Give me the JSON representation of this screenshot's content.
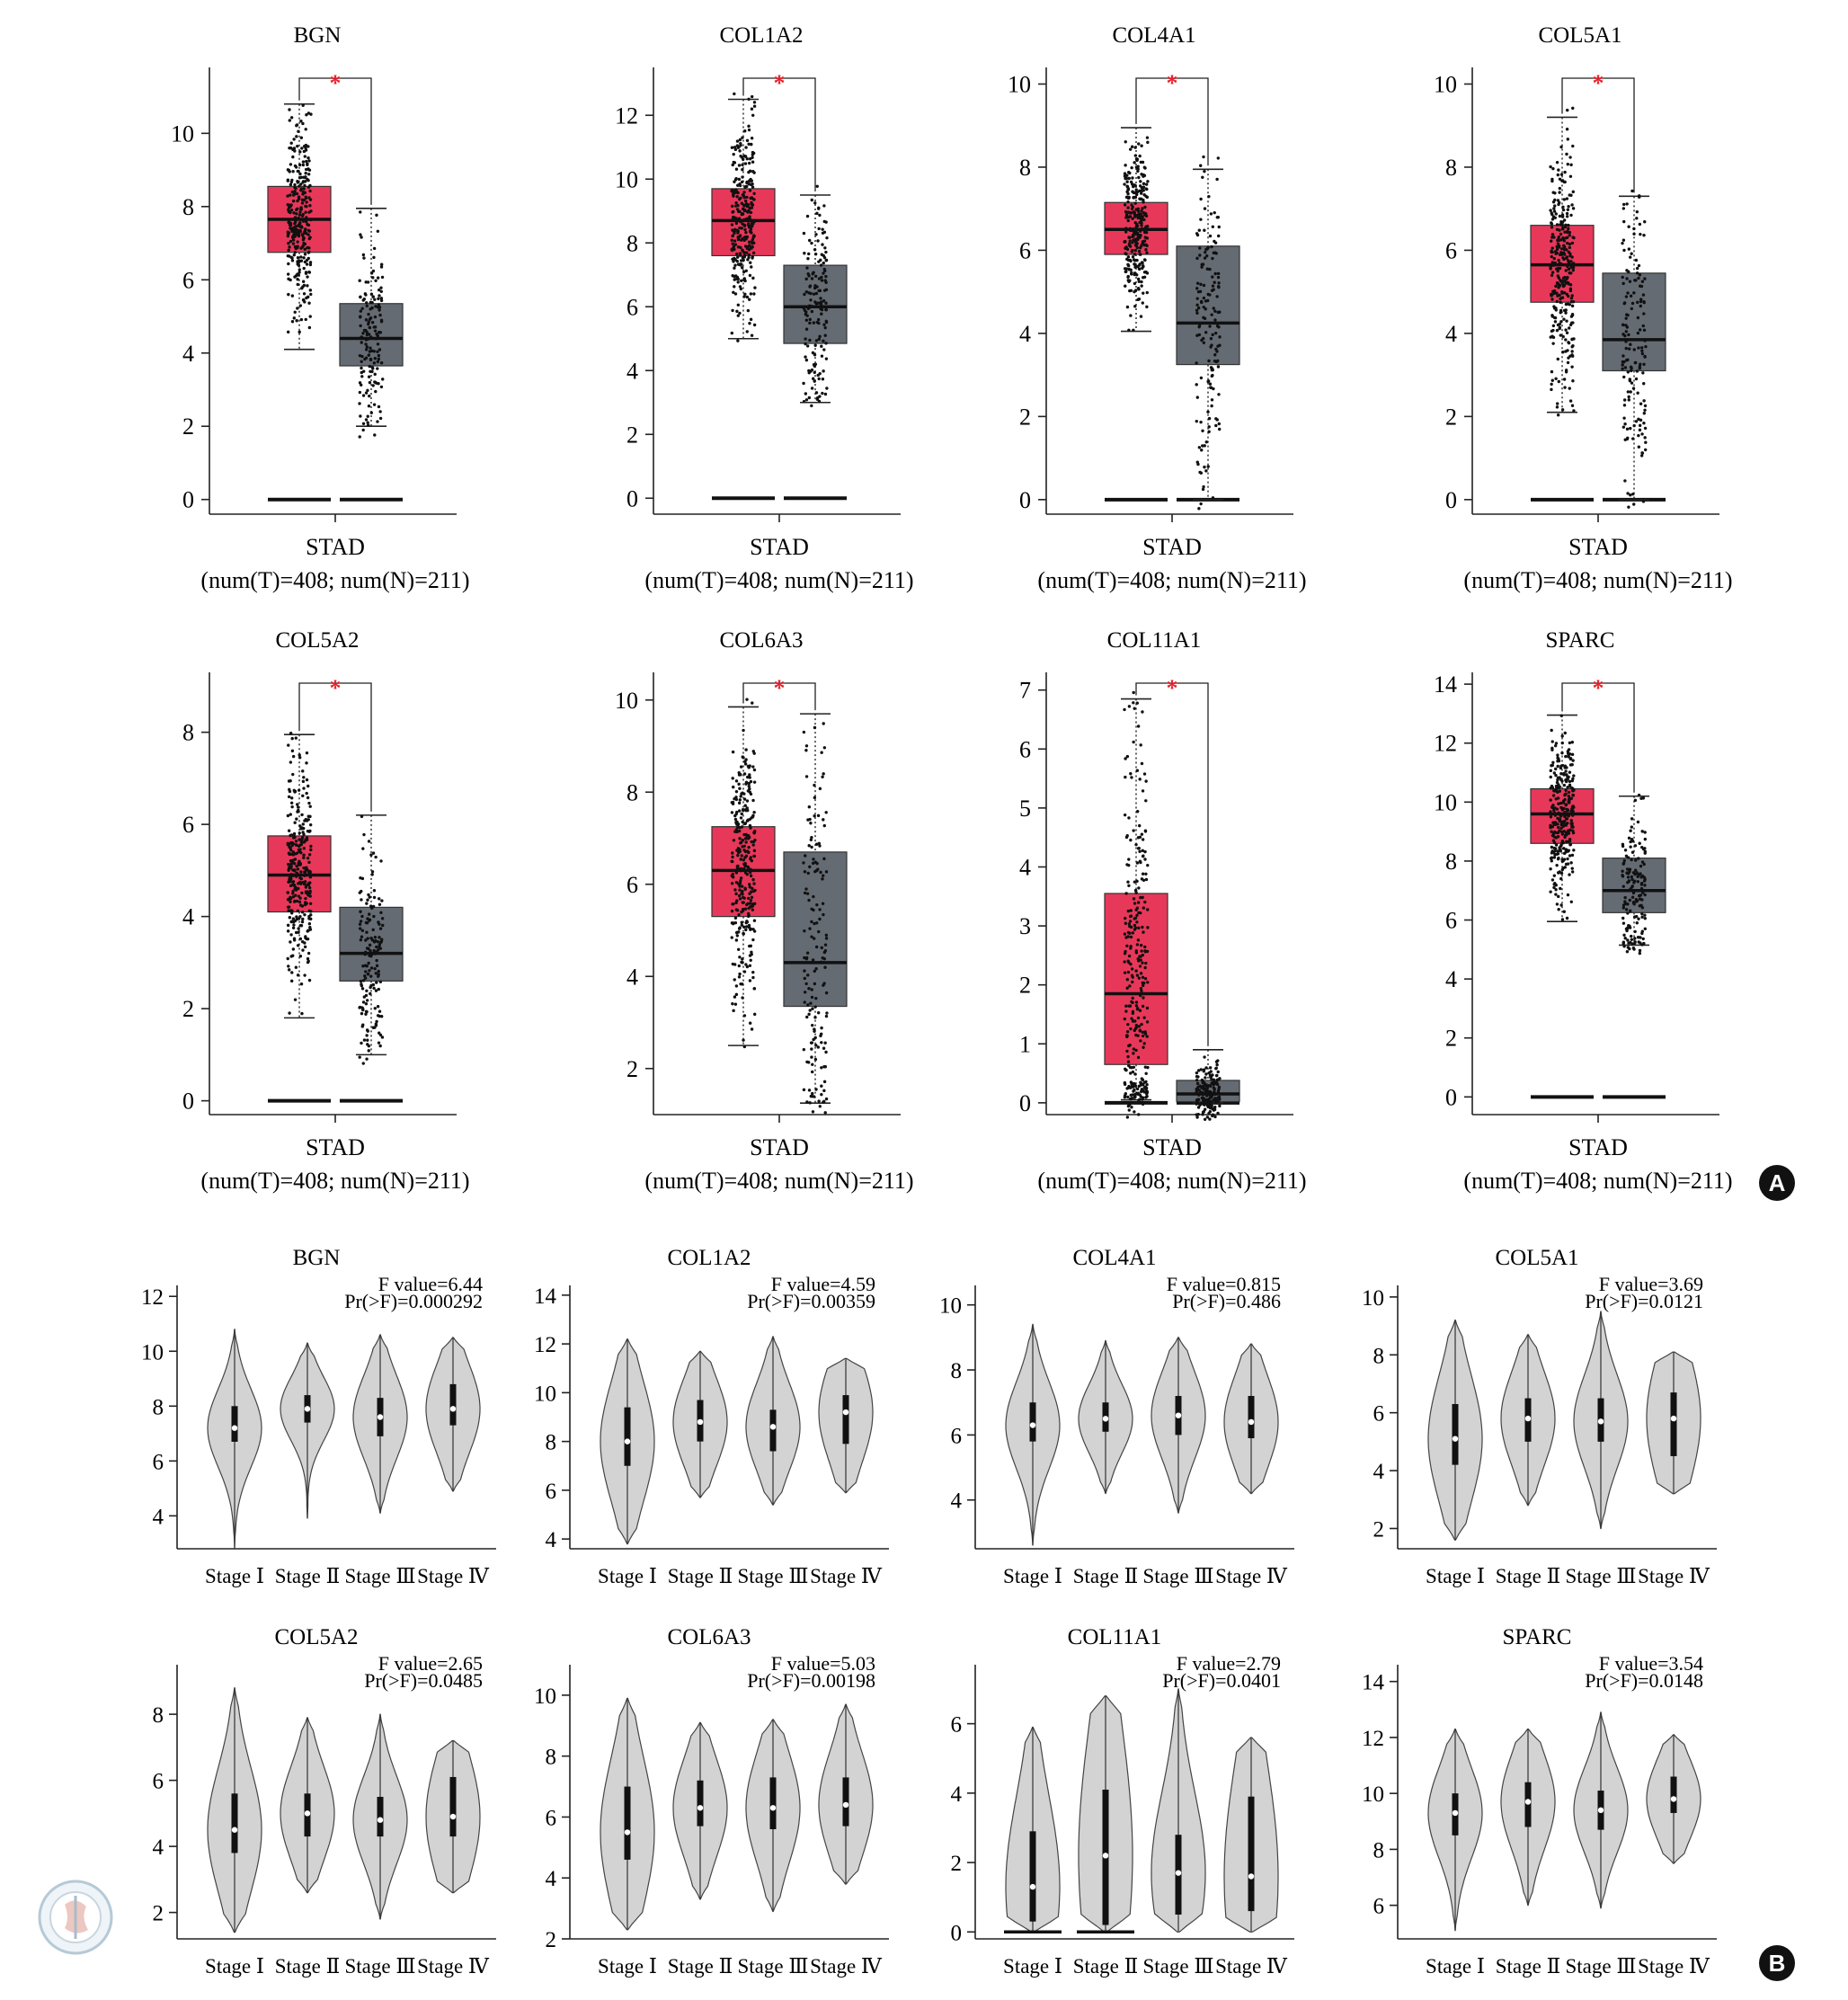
{
  "chart_data": [
    {
      "type": "box",
      "title": "BGN",
      "xlabel": "STAD",
      "sublabel": "(num(T)=408; num(N)=211)",
      "ylim": [
        -0.4,
        11.8
      ],
      "ticks": [
        0,
        2,
        4,
        6,
        8,
        10
      ],
      "significance": "*",
      "tumor": {
        "q1": 6.75,
        "median": 7.65,
        "q3": 8.55,
        "lo": 4.1,
        "hi": 10.8
      },
      "normal": {
        "q1": 3.65,
        "median": 4.4,
        "q3": 5.35,
        "lo": 2.0,
        "hi": 7.95
      }
    },
    {
      "type": "box",
      "title": "COL1A2",
      "xlabel": "STAD",
      "sublabel": "(num(T)=408; num(N)=211)",
      "ylim": [
        -0.5,
        13.5
      ],
      "ticks": [
        0,
        2,
        4,
        6,
        8,
        10,
        12
      ],
      "significance": "*",
      "tumor": {
        "q1": 7.6,
        "median": 8.7,
        "q3": 9.7,
        "lo": 5.0,
        "hi": 12.5
      },
      "normal": {
        "q1": 4.85,
        "median": 6.0,
        "q3": 7.3,
        "lo": 3.0,
        "hi": 9.5
      }
    },
    {
      "type": "box",
      "title": "COL4A1",
      "xlabel": "STAD",
      "sublabel": "(num(T)=408; num(N)=211)",
      "ylim": [
        -0.35,
        10.4
      ],
      "ticks": [
        0,
        2,
        4,
        6,
        8,
        10
      ],
      "significance": "*",
      "tumor": {
        "q1": 5.9,
        "median": 6.5,
        "q3": 7.15,
        "lo": 4.05,
        "hi": 8.95
      },
      "normal": {
        "q1": 3.25,
        "median": 4.25,
        "q3": 6.1,
        "lo": 0.0,
        "hi": 7.95
      }
    },
    {
      "type": "box",
      "title": "COL5A1",
      "xlabel": "STAD",
      "sublabel": "(num(T)=408; num(N)=211)",
      "ylim": [
        -0.35,
        10.4
      ],
      "ticks": [
        0,
        2,
        4,
        6,
        8,
        10
      ],
      "significance": "*",
      "tumor": {
        "q1": 4.75,
        "median": 5.65,
        "q3": 6.6,
        "lo": 2.1,
        "hi": 9.2
      },
      "normal": {
        "q1": 3.1,
        "median": 3.85,
        "q3": 5.45,
        "lo": 0.0,
        "hi": 7.3
      }
    },
    {
      "type": "box",
      "title": "COL5A2",
      "xlabel": "STAD",
      "sublabel": "(num(T)=408; num(N)=211)",
      "ylim": [
        -0.3,
        9.3
      ],
      "ticks": [
        0,
        2,
        4,
        6,
        8
      ],
      "significance": "*",
      "tumor": {
        "q1": 4.1,
        "median": 4.9,
        "q3": 5.75,
        "lo": 1.8,
        "hi": 7.95
      },
      "normal": {
        "q1": 2.6,
        "median": 3.2,
        "q3": 4.2,
        "lo": 1.0,
        "hi": 6.2
      }
    },
    {
      "type": "box",
      "title": "COL6A3",
      "xlabel": "STAD",
      "sublabel": "(num(T)=408; num(N)=211)",
      "ylim": [
        1.0,
        10.6
      ],
      "ticks": [
        2,
        4,
        6,
        8,
        10
      ],
      "significance": "*",
      "tumor": {
        "q1": 5.3,
        "median": 6.3,
        "q3": 7.25,
        "lo": 2.5,
        "hi": 9.85
      },
      "normal": {
        "q1": 3.35,
        "median": 4.3,
        "q3": 6.7,
        "lo": 1.25,
        "hi": 9.7
      }
    },
    {
      "type": "box",
      "title": "COL11A1",
      "xlabel": "STAD",
      "sublabel": "(num(T)=408; num(N)=211)",
      "ylim": [
        -0.2,
        7.3
      ],
      "ticks": [
        0,
        1,
        2,
        3,
        4,
        5,
        6,
        7
      ],
      "significance": "*",
      "tumor": {
        "q1": 0.65,
        "median": 1.85,
        "q3": 3.55,
        "lo": 0.05,
        "hi": 6.85
      },
      "normal": {
        "q1": 0.02,
        "median": 0.15,
        "q3": 0.38,
        "lo": 0.0,
        "hi": 0.9
      }
    },
    {
      "type": "box",
      "title": "SPARC",
      "xlabel": "STAD",
      "sublabel": "(num(T)=408; num(N)=211)",
      "ylim": [
        -0.6,
        14.4
      ],
      "ticks": [
        0,
        2,
        4,
        6,
        8,
        10,
        12,
        14
      ],
      "significance": "*",
      "tumor": {
        "q1": 8.6,
        "median": 9.6,
        "q3": 10.45,
        "lo": 5.95,
        "hi": 12.95
      },
      "normal": {
        "q1": 6.25,
        "median": 7.0,
        "q3": 8.1,
        "lo": 5.15,
        "hi": 10.2
      }
    },
    {
      "type": "violin",
      "title": "BGN",
      "f_value": "F value=6.44",
      "p_value": "Pr(>F)=0.000292",
      "ylim": [
        2.8,
        12.4
      ],
      "ticks": [
        4,
        6,
        8,
        10,
        12
      ],
      "categories": [
        "Stage Ⅰ",
        "Stage Ⅱ",
        "Stage Ⅲ",
        "Stage Ⅳ"
      ],
      "groups": [
        {
          "min": 2.8,
          "max": 10.8,
          "q1": 6.7,
          "median": 7.2,
          "q3": 8.0
        },
        {
          "min": 3.9,
          "max": 10.3,
          "q1": 7.4,
          "median": 7.9,
          "q3": 8.4
        },
        {
          "min": 4.1,
          "max": 10.6,
          "q1": 6.9,
          "median": 7.6,
          "q3": 8.3
        },
        {
          "min": 4.9,
          "max": 10.5,
          "q1": 7.3,
          "median": 7.9,
          "q3": 8.8
        }
      ]
    },
    {
      "type": "violin",
      "title": "COL1A2",
      "f_value": "F value=4.59",
      "p_value": "Pr(>F)=0.00359",
      "ylim": [
        3.6,
        14.4
      ],
      "ticks": [
        4,
        6,
        8,
        10,
        12,
        14
      ],
      "categories": [
        "Stage Ⅰ",
        "Stage Ⅱ",
        "Stage Ⅲ",
        "Stage Ⅳ"
      ],
      "groups": [
        {
          "min": 3.8,
          "max": 12.2,
          "q1": 7.0,
          "median": 8.0,
          "q3": 9.4
        },
        {
          "min": 5.7,
          "max": 11.7,
          "q1": 8.0,
          "median": 8.8,
          "q3": 9.7
        },
        {
          "min": 5.4,
          "max": 12.3,
          "q1": 7.6,
          "median": 8.6,
          "q3": 9.3
        },
        {
          "min": 5.9,
          "max": 11.4,
          "q1": 7.9,
          "median": 9.2,
          "q3": 9.9
        }
      ]
    },
    {
      "type": "violin",
      "title": "COL4A1",
      "f_value": "F value=0.815",
      "p_value": "Pr(>F)=0.486",
      "ylim": [
        2.5,
        10.6
      ],
      "ticks": [
        4,
        6,
        8,
        10
      ],
      "categories": [
        "Stage Ⅰ",
        "Stage Ⅱ",
        "Stage Ⅲ",
        "Stage Ⅳ"
      ],
      "groups": [
        {
          "min": 2.6,
          "max": 9.4,
          "q1": 5.8,
          "median": 6.3,
          "q3": 7.0
        },
        {
          "min": 4.2,
          "max": 8.9,
          "q1": 6.1,
          "median": 6.5,
          "q3": 7.0
        },
        {
          "min": 3.6,
          "max": 9.0,
          "q1": 6.0,
          "median": 6.6,
          "q3": 7.2
        },
        {
          "min": 4.2,
          "max": 8.8,
          "q1": 5.9,
          "median": 6.4,
          "q3": 7.2
        }
      ]
    },
    {
      "type": "violin",
      "title": "COL5A1",
      "f_value": "F value=3.69",
      "p_value": "Pr(>F)=0.0121",
      "ylim": [
        1.3,
        10.4
      ],
      "ticks": [
        2,
        4,
        6,
        8,
        10
      ],
      "categories": [
        "Stage Ⅰ",
        "Stage Ⅱ",
        "Stage Ⅲ",
        "Stage Ⅳ"
      ],
      "groups": [
        {
          "min": 1.6,
          "max": 9.2,
          "q1": 4.2,
          "median": 5.1,
          "q3": 6.3
        },
        {
          "min": 2.8,
          "max": 8.7,
          "q1": 5.0,
          "median": 5.8,
          "q3": 6.5
        },
        {
          "min": 2.0,
          "max": 9.5,
          "q1": 5.0,
          "median": 5.7,
          "q3": 6.5
        },
        {
          "min": 3.2,
          "max": 8.1,
          "q1": 4.5,
          "median": 5.8,
          "q3": 6.7
        }
      ]
    },
    {
      "type": "violin",
      "title": "COL5A2",
      "f_value": "F value=2.65",
      "p_value": "Pr(>F)=0.0485",
      "ylim": [
        1.2,
        9.5
      ],
      "ticks": [
        2,
        4,
        6,
        8
      ],
      "categories": [
        "Stage Ⅰ",
        "Stage Ⅱ",
        "Stage Ⅲ",
        "Stage Ⅳ"
      ],
      "groups": [
        {
          "min": 1.4,
          "max": 8.8,
          "q1": 3.8,
          "median": 4.5,
          "q3": 5.6
        },
        {
          "min": 2.6,
          "max": 7.9,
          "q1": 4.3,
          "median": 5.0,
          "q3": 5.6
        },
        {
          "min": 1.8,
          "max": 8.0,
          "q1": 4.3,
          "median": 4.8,
          "q3": 5.5
        },
        {
          "min": 2.6,
          "max": 7.2,
          "q1": 4.3,
          "median": 4.9,
          "q3": 6.1
        }
      ]
    },
    {
      "type": "violin",
      "title": "COL6A3",
      "f_value": "F value=5.03",
      "p_value": "Pr(>F)=0.00198",
      "ylim": [
        2.0,
        11.0
      ],
      "ticks": [
        2,
        4,
        6,
        8,
        10
      ],
      "categories": [
        "Stage Ⅰ",
        "Stage Ⅱ",
        "Stage Ⅲ",
        "Stage Ⅳ"
      ],
      "groups": [
        {
          "min": 2.3,
          "max": 9.9,
          "q1": 4.6,
          "median": 5.5,
          "q3": 7.0
        },
        {
          "min": 3.3,
          "max": 9.1,
          "q1": 5.7,
          "median": 6.3,
          "q3": 7.2
        },
        {
          "min": 2.9,
          "max": 9.2,
          "q1": 5.6,
          "median": 6.3,
          "q3": 7.3
        },
        {
          "min": 3.8,
          "max": 9.7,
          "q1": 5.7,
          "median": 6.4,
          "q3": 7.3
        }
      ]
    },
    {
      "type": "violin",
      "title": "COL11A1",
      "f_value": "F value=2.79",
      "p_value": "Pr(>F)=0.0401",
      "ylim": [
        -0.2,
        7.7
      ],
      "ticks": [
        0,
        2,
        4,
        6
      ],
      "categories": [
        "Stage Ⅰ",
        "Stage Ⅱ",
        "Stage Ⅲ",
        "Stage Ⅳ"
      ],
      "groups": [
        {
          "min": 0.0,
          "max": 5.9,
          "q1": 0.3,
          "median": 1.3,
          "q3": 2.9,
          "floor": true
        },
        {
          "min": 0.0,
          "max": 6.8,
          "q1": 0.2,
          "median": 2.2,
          "q3": 4.1,
          "floor": true
        },
        {
          "min": 0.0,
          "max": 7.0,
          "q1": 0.5,
          "median": 1.7,
          "q3": 2.8
        },
        {
          "min": 0.0,
          "max": 5.6,
          "q1": 0.6,
          "median": 1.6,
          "q3": 3.9
        }
      ]
    },
    {
      "type": "violin",
      "title": "SPARC",
      "f_value": "F value=3.54",
      "p_value": "Pr(>F)=0.0148",
      "ylim": [
        4.8,
        14.6
      ],
      "ticks": [
        6,
        8,
        10,
        12,
        14
      ],
      "categories": [
        "Stage Ⅰ",
        "Stage Ⅱ",
        "Stage Ⅲ",
        "Stage Ⅳ"
      ],
      "groups": [
        {
          "min": 5.1,
          "max": 12.3,
          "q1": 8.5,
          "median": 9.3,
          "q3": 10.0
        },
        {
          "min": 6.0,
          "max": 12.3,
          "q1": 8.8,
          "median": 9.7,
          "q3": 10.4
        },
        {
          "min": 5.9,
          "max": 12.9,
          "q1": 8.7,
          "median": 9.4,
          "q3": 10.1
        },
        {
          "min": 7.5,
          "max": 12.1,
          "q1": 9.3,
          "median": 9.8,
          "q3": 10.6
        }
      ]
    }
  ],
  "panel_labels": {
    "a": "A",
    "b": "B"
  },
  "colors": {
    "tumor": "#e8385a",
    "normal": "#656b73",
    "violin": "#d3d3d3",
    "star": "#e4252f"
  }
}
